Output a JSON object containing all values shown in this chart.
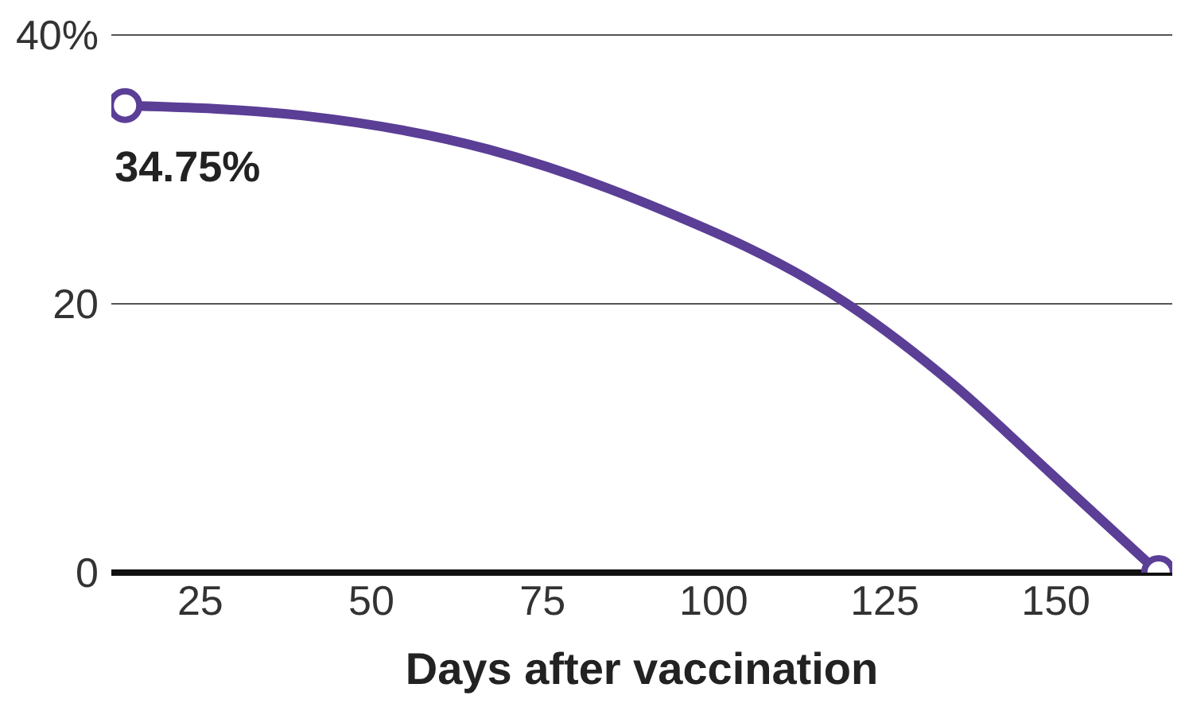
{
  "chart_data": {
    "type": "line",
    "xlabel": "Days after vaccination",
    "series": [
      {
        "color": "#5b3e96",
        "x": [
          14,
          40,
          67,
          90,
          119.5,
          135,
          149,
          165
        ],
        "values": [
          34.75,
          34,
          31.5,
          27.5,
          20,
          14,
          7.5,
          0
        ],
        "marker": "none"
      },
      {
        "type": "scatter",
        "color": "#5b3e96",
        "x": [
          14,
          165
        ],
        "values": [
          34.75,
          0
        ],
        "marker": "circle",
        "value_labels": [
          "34.75%",
          null
        ]
      }
    ],
    "xlim": [
      12,
      167
    ],
    "xticks": [
      25,
      50,
      75,
      100,
      125,
      150
    ],
    "ylim": [
      0,
      40
    ],
    "yticks": [
      0,
      20,
      {
        "value": 40,
        "label": "40%"
      }
    ],
    "grid": "y"
  }
}
